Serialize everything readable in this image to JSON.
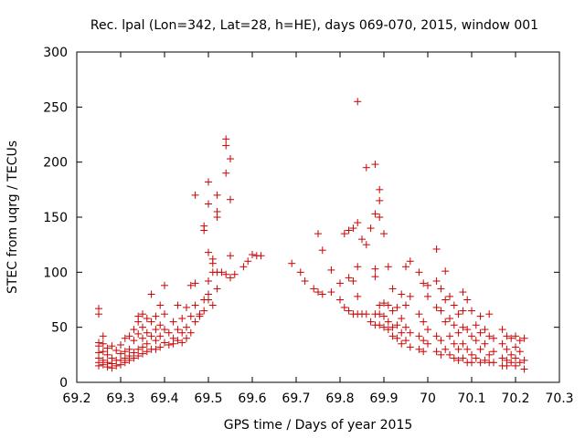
{
  "chart_data": {
    "type": "scatter",
    "title": "Rec. lpal (Lon=342, Lat=28, h=HE), days 069-070, 2015, window 001",
    "xlabel": "GPS time / Days of year 2015",
    "ylabel": "STEC from uqrg / TECUs",
    "xlim": [
      69.2,
      70.3
    ],
    "ylim": [
      0,
      300
    ],
    "x_ticks": [
      69.2,
      69.3,
      69.4,
      69.5,
      69.6,
      69.7,
      69.8,
      69.9,
      70.0,
      70.1,
      70.2,
      70.3
    ],
    "x_tick_labels": [
      "69.2",
      "69.3",
      "69.4",
      "69.5",
      "69.6",
      "69.7",
      "69.8",
      "69.9",
      "70",
      "70.1",
      "70.2",
      "70.3"
    ],
    "y_ticks": [
      0,
      50,
      100,
      150,
      200,
      250,
      300
    ],
    "y_tick_labels": [
      "0",
      "50",
      "100",
      "150",
      "200",
      "250",
      "300"
    ],
    "marker": "+",
    "color": "#cc0000",
    "grid": false,
    "points": [
      [
        69.25,
        67
      ],
      [
        69.25,
        62
      ],
      [
        69.25,
        36
      ],
      [
        69.25,
        33
      ],
      [
        69.25,
        27
      ],
      [
        69.25,
        22
      ],
      [
        69.25,
        18
      ],
      [
        69.25,
        15
      ],
      [
        69.26,
        42
      ],
      [
        69.26,
        35
      ],
      [
        69.26,
        28
      ],
      [
        69.26,
        20
      ],
      [
        69.26,
        16
      ],
      [
        69.27,
        31
      ],
      [
        69.27,
        25
      ],
      [
        69.27,
        18
      ],
      [
        69.27,
        14
      ],
      [
        69.28,
        33
      ],
      [
        69.28,
        22
      ],
      [
        69.28,
        17
      ],
      [
        69.28,
        13
      ],
      [
        69.29,
        29
      ],
      [
        69.29,
        20
      ],
      [
        69.29,
        15
      ],
      [
        69.3,
        34
      ],
      [
        69.3,
        26
      ],
      [
        69.3,
        20
      ],
      [
        69.3,
        16
      ],
      [
        69.31,
        40
      ],
      [
        69.31,
        28
      ],
      [
        69.31,
        22
      ],
      [
        69.31,
        18
      ],
      [
        69.32,
        42
      ],
      [
        69.32,
        30
      ],
      [
        69.32,
        24
      ],
      [
        69.32,
        20
      ],
      [
        69.33,
        48
      ],
      [
        69.33,
        38
      ],
      [
        69.33,
        27
      ],
      [
        69.33,
        22
      ],
      [
        69.34,
        60
      ],
      [
        69.34,
        55
      ],
      [
        69.34,
        44
      ],
      [
        69.34,
        30
      ],
      [
        69.34,
        24
      ],
      [
        69.35,
        62
      ],
      [
        69.35,
        50
      ],
      [
        69.35,
        40
      ],
      [
        69.35,
        32
      ],
      [
        69.35,
        26
      ],
      [
        69.36,
        58
      ],
      [
        69.36,
        45
      ],
      [
        69.36,
        35
      ],
      [
        69.36,
        28
      ],
      [
        69.37,
        80
      ],
      [
        69.37,
        55
      ],
      [
        69.37,
        42
      ],
      [
        69.37,
        30
      ],
      [
        69.38,
        60
      ],
      [
        69.38,
        48
      ],
      [
        69.38,
        38
      ],
      [
        69.38,
        30
      ],
      [
        69.39,
        70
      ],
      [
        69.39,
        52
      ],
      [
        69.39,
        42
      ],
      [
        69.39,
        32
      ],
      [
        69.4,
        88
      ],
      [
        69.4,
        62
      ],
      [
        69.4,
        48
      ],
      [
        69.4,
        36
      ],
      [
        69.41,
        45
      ],
      [
        69.41,
        34
      ],
      [
        69.42,
        55
      ],
      [
        69.42,
        40
      ],
      [
        69.42,
        35
      ],
      [
        69.43,
        70
      ],
      [
        69.43,
        48
      ],
      [
        69.43,
        38
      ],
      [
        69.44,
        58
      ],
      [
        69.44,
        45
      ],
      [
        69.44,
        36
      ],
      [
        69.45,
        68
      ],
      [
        69.45,
        50
      ],
      [
        69.45,
        40
      ],
      [
        69.46,
        88
      ],
      [
        69.46,
        60
      ],
      [
        69.46,
        45
      ],
      [
        69.47,
        170
      ],
      [
        69.47,
        90
      ],
      [
        69.47,
        70
      ],
      [
        69.47,
        55
      ],
      [
        69.48,
        60
      ],
      [
        69.48,
        62
      ],
      [
        69.49,
        142
      ],
      [
        69.49,
        138
      ],
      [
        69.49,
        75
      ],
      [
        69.49,
        65
      ],
      [
        69.5,
        182
      ],
      [
        69.5,
        162
      ],
      [
        69.5,
        118
      ],
      [
        69.5,
        92
      ],
      [
        69.5,
        80
      ],
      [
        69.5,
        75
      ],
      [
        69.51,
        112
      ],
      [
        69.51,
        108
      ],
      [
        69.51,
        100
      ],
      [
        69.51,
        70
      ],
      [
        69.52,
        170
      ],
      [
        69.52,
        155
      ],
      [
        69.52,
        150
      ],
      [
        69.52,
        100
      ],
      [
        69.52,
        85
      ],
      [
        69.53,
        100
      ],
      [
        69.54,
        221
      ],
      [
        69.54,
        215
      ],
      [
        69.54,
        190
      ],
      [
        69.54,
        98
      ],
      [
        69.55,
        203
      ],
      [
        69.55,
        166
      ],
      [
        69.55,
        115
      ],
      [
        69.55,
        95
      ],
      [
        69.56,
        98
      ],
      [
        69.58,
        105
      ],
      [
        69.59,
        110
      ],
      [
        69.6,
        116
      ],
      [
        69.61,
        115
      ],
      [
        69.62,
        115
      ],
      [
        69.69,
        108
      ],
      [
        69.71,
        100
      ],
      [
        69.72,
        92
      ],
      [
        69.74,
        85
      ],
      [
        69.75,
        135
      ],
      [
        69.75,
        82
      ],
      [
        69.76,
        120
      ],
      [
        69.76,
        80
      ],
      [
        69.78,
        102
      ],
      [
        69.78,
        82
      ],
      [
        69.8,
        90
      ],
      [
        69.8,
        75
      ],
      [
        69.81,
        135
      ],
      [
        69.81,
        68
      ],
      [
        69.82,
        138
      ],
      [
        69.82,
        95
      ],
      [
        69.82,
        65
      ],
      [
        69.83,
        140
      ],
      [
        69.83,
        92
      ],
      [
        69.83,
        62
      ],
      [
        69.84,
        145
      ],
      [
        69.84,
        255
      ],
      [
        69.84,
        105
      ],
      [
        69.84,
        78
      ],
      [
        69.84,
        62
      ],
      [
        69.85,
        130
      ],
      [
        69.85,
        62
      ],
      [
        69.86,
        195
      ],
      [
        69.86,
        125
      ],
      [
        69.86,
        62
      ],
      [
        69.87,
        140
      ],
      [
        69.87,
        55
      ],
      [
        69.88,
        198
      ],
      [
        69.88,
        153
      ],
      [
        69.88,
        103
      ],
      [
        69.88,
        96
      ],
      [
        69.88,
        62
      ],
      [
        69.88,
        52
      ],
      [
        69.89,
        175
      ],
      [
        69.89,
        165
      ],
      [
        69.89,
        150
      ],
      [
        69.89,
        70
      ],
      [
        69.89,
        62
      ],
      [
        69.89,
        52
      ],
      [
        69.9,
        135
      ],
      [
        69.9,
        72
      ],
      [
        69.9,
        60
      ],
      [
        69.9,
        50
      ],
      [
        69.91,
        105
      ],
      [
        69.91,
        70
      ],
      [
        69.91,
        55
      ],
      [
        69.91,
        48
      ],
      [
        69.92,
        85
      ],
      [
        69.92,
        65
      ],
      [
        69.92,
        50
      ],
      [
        69.92,
        42
      ],
      [
        69.93,
        68
      ],
      [
        69.93,
        52
      ],
      [
        69.93,
        40
      ],
      [
        69.94,
        80
      ],
      [
        69.94,
        58
      ],
      [
        69.94,
        45
      ],
      [
        69.94,
        35
      ],
      [
        69.95,
        105
      ],
      [
        69.95,
        70
      ],
      [
        69.95,
        50
      ],
      [
        69.95,
        38
      ],
      [
        69.96,
        110
      ],
      [
        69.96,
        78
      ],
      [
        69.96,
        45
      ],
      [
        69.96,
        32
      ],
      [
        69.98,
        100
      ],
      [
        69.98,
        62
      ],
      [
        69.98,
        42
      ],
      [
        69.98,
        30
      ],
      [
        69.99,
        90
      ],
      [
        69.99,
        55
      ],
      [
        69.99,
        38
      ],
      [
        69.99,
        28
      ],
      [
        70.0,
        88
      ],
      [
        70.0,
        78
      ],
      [
        70.0,
        48
      ],
      [
        70.0,
        35
      ],
      [
        70.02,
        121
      ],
      [
        70.02,
        92
      ],
      [
        70.02,
        68
      ],
      [
        70.02,
        42
      ],
      [
        70.02,
        28
      ],
      [
        70.03,
        85
      ],
      [
        70.03,
        65
      ],
      [
        70.03,
        38
      ],
      [
        70.03,
        25
      ],
      [
        70.04,
        101
      ],
      [
        70.04,
        75
      ],
      [
        70.04,
        55
      ],
      [
        70.04,
        30
      ],
      [
        70.05,
        78
      ],
      [
        70.05,
        58
      ],
      [
        70.05,
        42
      ],
      [
        70.05,
        25
      ],
      [
        70.06,
        70
      ],
      [
        70.06,
        52
      ],
      [
        70.06,
        35
      ],
      [
        70.06,
        22
      ],
      [
        70.07,
        62
      ],
      [
        70.07,
        45
      ],
      [
        70.07,
        30
      ],
      [
        70.07,
        20
      ],
      [
        70.08,
        82
      ],
      [
        70.08,
        65
      ],
      [
        70.08,
        50
      ],
      [
        70.08,
        35
      ],
      [
        70.08,
        22
      ],
      [
        70.09,
        75
      ],
      [
        70.09,
        48
      ],
      [
        70.09,
        30
      ],
      [
        70.09,
        18
      ],
      [
        70.1,
        65
      ],
      [
        70.1,
        42
      ],
      [
        70.1,
        25
      ],
      [
        70.1,
        18
      ],
      [
        70.11,
        52
      ],
      [
        70.11,
        38
      ],
      [
        70.11,
        22
      ],
      [
        70.12,
        60
      ],
      [
        70.12,
        45
      ],
      [
        70.12,
        30
      ],
      [
        70.12,
        18
      ],
      [
        70.13,
        48
      ],
      [
        70.13,
        35
      ],
      [
        70.13,
        20
      ],
      [
        70.14,
        62
      ],
      [
        70.14,
        42
      ],
      [
        70.14,
        25
      ],
      [
        70.14,
        18
      ],
      [
        70.15,
        40
      ],
      [
        70.15,
        28
      ],
      [
        70.15,
        18
      ],
      [
        70.17,
        48
      ],
      [
        70.17,
        35
      ],
      [
        70.17,
        22
      ],
      [
        70.17,
        15
      ],
      [
        70.18,
        42
      ],
      [
        70.18,
        30
      ],
      [
        70.18,
        20
      ],
      [
        70.18,
        15
      ],
      [
        70.19,
        40
      ],
      [
        70.19,
        25
      ],
      [
        70.19,
        18
      ],
      [
        70.2,
        42
      ],
      [
        70.2,
        32
      ],
      [
        70.2,
        22
      ],
      [
        70.2,
        15
      ],
      [
        70.21,
        38
      ],
      [
        70.21,
        28
      ],
      [
        70.21,
        18
      ],
      [
        70.22,
        40
      ],
      [
        70.22,
        20
      ],
      [
        70.22,
        12
      ]
    ]
  }
}
